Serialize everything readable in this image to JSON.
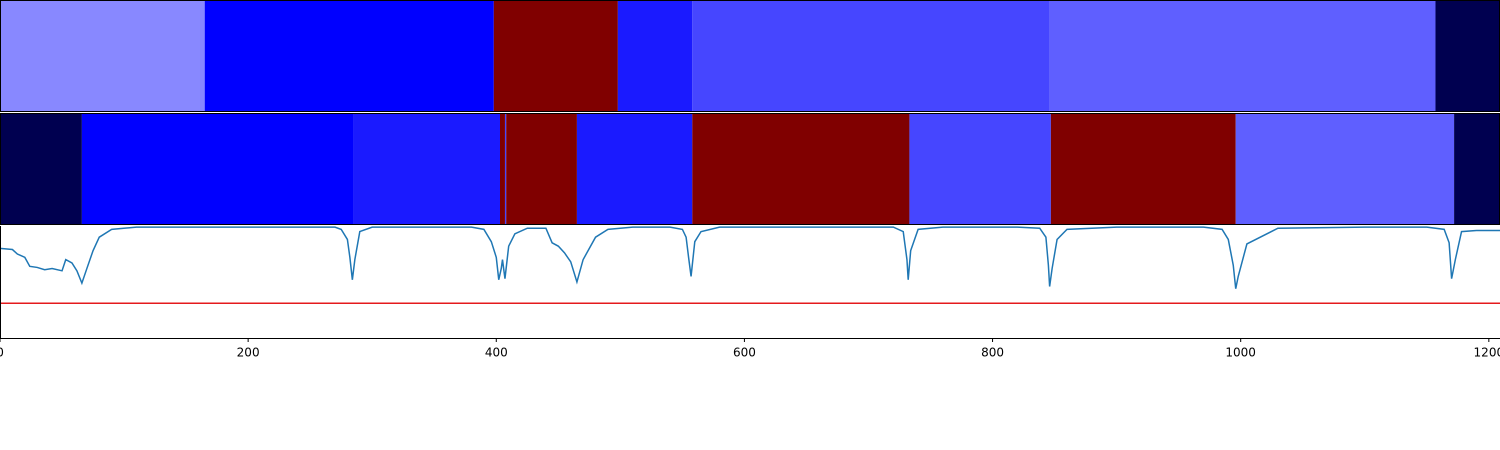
{
  "chart_data": [
    {
      "type": "segments",
      "xlim": [
        0,
        1209
      ],
      "segments": [
        {
          "start": 0,
          "end": 165,
          "color": "#8888ff"
        },
        {
          "start": 165,
          "end": 398,
          "color": "#0000ff"
        },
        {
          "start": 398,
          "end": 498,
          "color": "#800000"
        },
        {
          "start": 498,
          "end": 558,
          "color": "#1a1aff"
        },
        {
          "start": 558,
          "end": 846,
          "color": "#4646ff"
        },
        {
          "start": 846,
          "end": 1157,
          "color": "#5f5fff"
        },
        {
          "start": 1157,
          "end": 1209,
          "color": "#000050"
        }
      ]
    },
    {
      "type": "segments",
      "xlim": [
        0,
        1209
      ],
      "segments": [
        {
          "start": 0,
          "end": 66,
          "color": "#000050"
        },
        {
          "start": 66,
          "end": 285,
          "color": "#0000ff"
        },
        {
          "start": 285,
          "end": 403,
          "color": "#1a1aff"
        },
        {
          "start": 403,
          "end": 407,
          "color": "#800000"
        },
        {
          "start": 407,
          "end": 408,
          "color": "#4646ff"
        },
        {
          "start": 408,
          "end": 465,
          "color": "#800000"
        },
        {
          "start": 465,
          "end": 558,
          "color": "#1a1aff"
        },
        {
          "start": 558,
          "end": 733,
          "color": "#800000"
        },
        {
          "start": 733,
          "end": 847,
          "color": "#4646ff"
        },
        {
          "start": 847,
          "end": 996,
          "color": "#800000"
        },
        {
          "start": 996,
          "end": 1172,
          "color": "#5f5fff"
        },
        {
          "start": 1172,
          "end": 1209,
          "color": "#000050"
        }
      ]
    },
    {
      "type": "line",
      "xlim": [
        0,
        1209
      ],
      "ylim": [
        0,
        1
      ],
      "xticks": [
        0,
        200,
        400,
        600,
        800,
        1000,
        1200
      ],
      "threshold": {
        "value": 0.31,
        "color": "#e41a1c"
      },
      "series": [
        {
          "color": "#1f77b4",
          "x": [
            0,
            10,
            14,
            20,
            24,
            30,
            36,
            42,
            50,
            53,
            58,
            62,
            66,
            70,
            75,
            80,
            90,
            110,
            150,
            200,
            250,
            270,
            275,
            280,
            282,
            284,
            286,
            290,
            300,
            320,
            380,
            390,
            396,
            400,
            402,
            404,
            405,
            407,
            410,
            415,
            425,
            440,
            445,
            450,
            455,
            460,
            465,
            470,
            480,
            490,
            510,
            540,
            550,
            553,
            555,
            557,
            560,
            565,
            580,
            650,
            720,
            728,
            731,
            732,
            734,
            740,
            760,
            820,
            838,
            843,
            845,
            846,
            848,
            852,
            860,
            900,
            970,
            985,
            990,
            994,
            996,
            998,
            1005,
            1030,
            1100,
            1150,
            1164,
            1168,
            1170,
            1173,
            1178,
            1190,
            1209
          ],
          "values": [
            0.8,
            0.79,
            0.75,
            0.72,
            0.64,
            0.63,
            0.61,
            0.62,
            0.6,
            0.7,
            0.67,
            0.6,
            0.49,
            0.62,
            0.78,
            0.9,
            0.97,
            0.99,
            0.99,
            0.99,
            0.99,
            0.99,
            0.97,
            0.88,
            0.72,
            0.52,
            0.7,
            0.95,
            0.99,
            0.99,
            0.99,
            0.97,
            0.86,
            0.72,
            0.52,
            0.62,
            0.7,
            0.53,
            0.82,
            0.93,
            0.98,
            0.98,
            0.85,
            0.82,
            0.76,
            0.68,
            0.5,
            0.7,
            0.9,
            0.97,
            0.99,
            0.99,
            0.97,
            0.9,
            0.72,
            0.55,
            0.86,
            0.95,
            0.99,
            0.99,
            0.99,
            0.95,
            0.7,
            0.52,
            0.78,
            0.97,
            0.99,
            0.99,
            0.98,
            0.9,
            0.65,
            0.46,
            0.62,
            0.88,
            0.97,
            0.99,
            0.99,
            0.97,
            0.88,
            0.65,
            0.44,
            0.55,
            0.84,
            0.98,
            0.99,
            0.99,
            0.97,
            0.85,
            0.53,
            0.7,
            0.95,
            0.96,
            0.96
          ]
        }
      ]
    }
  ]
}
